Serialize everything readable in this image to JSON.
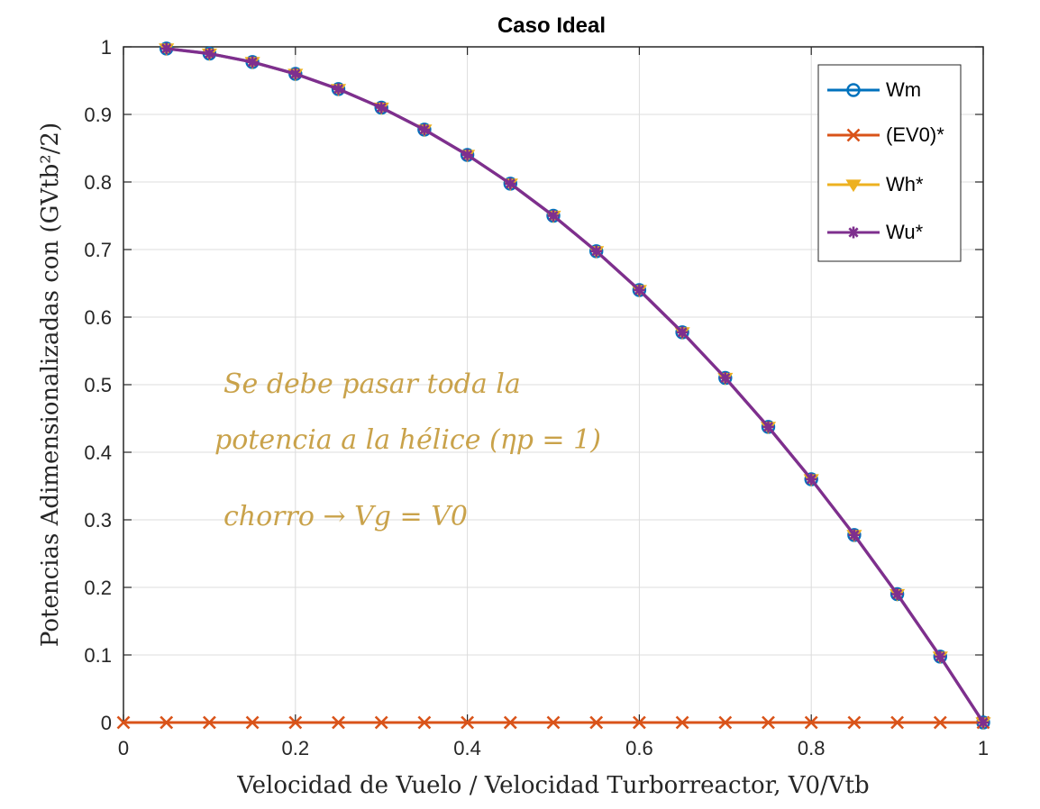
{
  "chart_data": {
    "type": "line",
    "title": "Caso Ideal",
    "xlabel": "Velocidad de Vuelo / Velocidad Turborreactor, V0/Vtb",
    "ylabel": "Potencias Adimensionalizadas con (GVtb²/2)",
    "xlim": [
      0,
      1
    ],
    "ylim": [
      0,
      1
    ],
    "xticks": [
      "0",
      "0.2",
      "0.4",
      "0.6",
      "0.8",
      "1"
    ],
    "yticks": [
      "0",
      "0.1",
      "0.2",
      "0.3",
      "0.4",
      "0.5",
      "0.6",
      "0.7",
      "0.8",
      "0.9",
      "1"
    ],
    "grid": true,
    "legend_position": "top-right",
    "x": [
      0.05,
      0.1,
      0.15,
      0.2,
      0.25,
      0.3,
      0.35,
      0.4,
      0.45,
      0.5,
      0.55,
      0.6,
      0.65,
      0.7,
      0.75,
      0.8,
      0.85,
      0.9,
      0.95,
      1.0
    ],
    "series": [
      {
        "name": "Wm",
        "color": "#0072BD",
        "marker": "circle",
        "values": [
          0.9975,
          0.99,
          0.9775,
          0.96,
          0.9375,
          0.91,
          0.8775,
          0.84,
          0.7975,
          0.75,
          0.6975,
          0.64,
          0.5775,
          0.51,
          0.4375,
          0.36,
          0.2775,
          0.19,
          0.0975,
          0.0
        ]
      },
      {
        "name": "(EV0)*",
        "color": "#D95319",
        "marker": "x",
        "x": [
          0,
          0.05,
          0.1,
          0.15,
          0.2,
          0.25,
          0.3,
          0.35,
          0.4,
          0.45,
          0.5,
          0.55,
          0.6,
          0.65,
          0.7,
          0.75,
          0.8,
          0.85,
          0.9,
          0.95,
          1.0
        ],
        "values": [
          0,
          0,
          0,
          0,
          0,
          0,
          0,
          0,
          0,
          0,
          0,
          0,
          0,
          0,
          0,
          0,
          0,
          0,
          0,
          0,
          0
        ]
      },
      {
        "name": "Wh*",
        "color": "#EDB120",
        "marker": "triangle-down",
        "values": [
          0.9975,
          0.99,
          0.9775,
          0.96,
          0.9375,
          0.91,
          0.8775,
          0.84,
          0.7975,
          0.75,
          0.6975,
          0.64,
          0.5775,
          0.51,
          0.4375,
          0.36,
          0.2775,
          0.19,
          0.0975,
          0.0
        ]
      },
      {
        "name": "Wu*",
        "color": "#7E2F8E",
        "marker": "asterisk",
        "values": [
          0.9975,
          0.99,
          0.9775,
          0.96,
          0.9375,
          0.91,
          0.8775,
          0.84,
          0.7975,
          0.75,
          0.6975,
          0.64,
          0.5775,
          0.51,
          0.4375,
          0.36,
          0.2775,
          0.19,
          0.0975,
          0.0
        ]
      }
    ],
    "annotations": [
      "Se debe pasar toda la",
      "potencia a la hélice (ηp = 1)",
      "chorro → Vg = V0"
    ]
  }
}
